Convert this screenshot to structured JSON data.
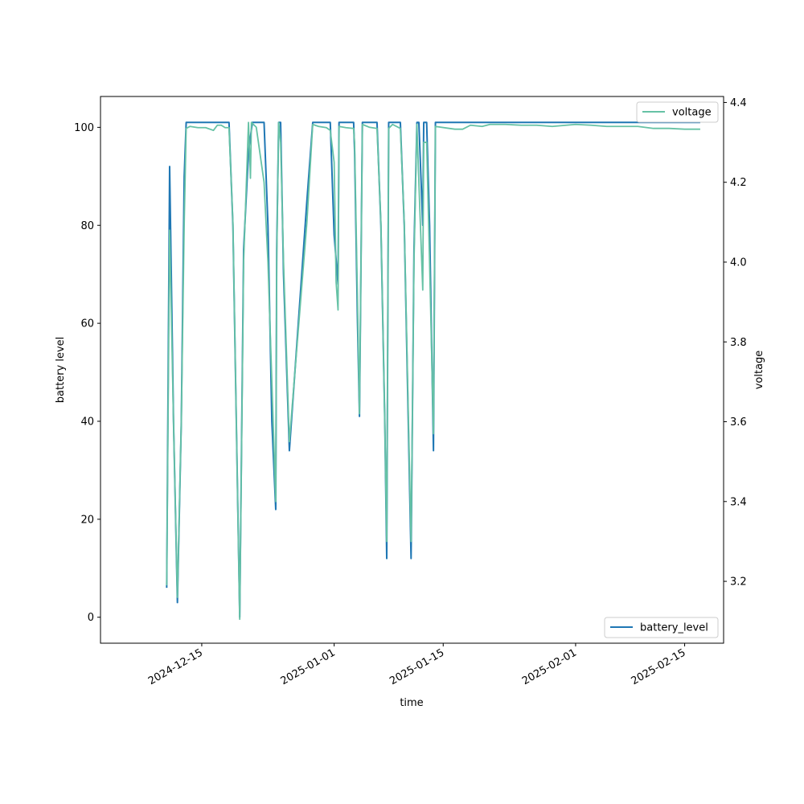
{
  "chart_data": {
    "type": "line",
    "xlabel": "time",
    "ylabel": "battery level",
    "y2label": "voltage",
    "xlim": [
      "2024-12-02",
      "2025-02-20"
    ],
    "ylim": [
      -5.3,
      106.3
    ],
    "y2lim": [
      3.045,
      4.415
    ],
    "x_ticks": [
      "2024-12-15",
      "2025-01-01",
      "2025-01-15",
      "2025-02-01",
      "2025-02-15"
    ],
    "y_ticks": [
      "0",
      "20",
      "40",
      "60",
      "80",
      "100"
    ],
    "y2_ticks": [
      "3.2",
      "3.4",
      "3.6",
      "3.8",
      "4.0",
      "4.2",
      "4.4"
    ],
    "colors": {
      "battery_level": "#1f77b4",
      "voltage": "#66c2a5"
    },
    "legend": {
      "battery_level": {
        "label": "battery_level",
        "placement": "lower right"
      },
      "voltage": {
        "label": "voltage",
        "placement": "upper right"
      }
    },
    "series": [
      {
        "name": "battery_level",
        "axis": "left",
        "points": [
          [
            "2024-12-10 12:00",
            6
          ],
          [
            "2024-12-10 21:00",
            92
          ],
          [
            "2024-12-11 09:00",
            40
          ],
          [
            "2024-12-11 21:00",
            3
          ],
          [
            "2024-12-12 09:00",
            40
          ],
          [
            "2024-12-12 18:00",
            90
          ],
          [
            "2024-12-13 00:00",
            101
          ],
          [
            "2024-12-15 00:00",
            101
          ],
          [
            "2024-12-18 00:00",
            101
          ],
          [
            "2024-12-18 12:00",
            101
          ],
          [
            "2024-12-19 00:00",
            80
          ],
          [
            "2024-12-19 21:00",
            0
          ],
          [
            "2024-12-20 09:00",
            75
          ],
          [
            "2024-12-21 00:00",
            95
          ],
          [
            "2024-12-21 12:00",
            101
          ],
          [
            "2024-12-23 00:00",
            101
          ],
          [
            "2024-12-23 12:00",
            80
          ],
          [
            "2024-12-24 00:00",
            40
          ],
          [
            "2024-12-24 12:00",
            22
          ],
          [
            "2024-12-24 15:00",
            75
          ],
          [
            "2024-12-24 21:00",
            101
          ],
          [
            "2024-12-25 03:00",
            101
          ],
          [
            "2024-12-25 12:00",
            70
          ],
          [
            "2024-12-26 06:00",
            34
          ],
          [
            "2024-12-28 12:00",
            85
          ],
          [
            "2024-12-29 06:00",
            101
          ],
          [
            "2024-12-31 00:00",
            101
          ],
          [
            "2024-12-31 12:00",
            101
          ],
          [
            "2025-01-01 00:00",
            78
          ],
          [
            "2025-01-01 12:00",
            68
          ],
          [
            "2025-01-01 15:00",
            101
          ],
          [
            "2025-01-03 12:00",
            101
          ],
          [
            "2025-01-03 15:00",
            95
          ],
          [
            "2025-01-04 00:00",
            60
          ],
          [
            "2025-01-04 06:00",
            41
          ],
          [
            "2025-01-04 15:00",
            101
          ],
          [
            "2025-01-06 12:00",
            101
          ],
          [
            "2025-01-07 00:00",
            80
          ],
          [
            "2025-01-07 12:00",
            40
          ],
          [
            "2025-01-07 18:00",
            12
          ],
          [
            "2025-01-08 00:00",
            101
          ],
          [
            "2025-01-09 12:00",
            101
          ],
          [
            "2025-01-10 00:00",
            80
          ],
          [
            "2025-01-10 21:00",
            12
          ],
          [
            "2025-01-11 06:00",
            75
          ],
          [
            "2025-01-11 15:00",
            101
          ],
          [
            "2025-01-11 21:00",
            101
          ],
          [
            "2025-01-12 09:00",
            80
          ],
          [
            "2025-01-12 12:00",
            101
          ],
          [
            "2025-01-12 21:00",
            101
          ],
          [
            "2025-01-13 06:00",
            80
          ],
          [
            "2025-01-13 18:00",
            34
          ],
          [
            "2025-01-14 00:00",
            101
          ],
          [
            "2025-01-20 00:00",
            101
          ],
          [
            "2025-02-01 00:00",
            101
          ],
          [
            "2025-02-10 00:00",
            101
          ],
          [
            "2025-02-17 00:00",
            101
          ]
        ]
      },
      {
        "name": "voltage",
        "axis": "right",
        "points": [
          [
            "2024-12-10 12:00",
            3.19
          ],
          [
            "2024-12-10 21:00",
            4.08
          ],
          [
            "2024-12-11 09:00",
            3.6
          ],
          [
            "2024-12-11 21:00",
            3.16
          ],
          [
            "2024-12-12 09:00",
            3.6
          ],
          [
            "2024-12-12 18:00",
            4.1
          ],
          [
            "2024-12-13 00:00",
            4.335
          ],
          [
            "2024-12-13 12:00",
            4.34
          ],
          [
            "2024-12-14 12:00",
            4.337
          ],
          [
            "2024-12-15 12:00",
            4.337
          ],
          [
            "2024-12-16 12:00",
            4.33
          ],
          [
            "2024-12-17 00:00",
            4.343
          ],
          [
            "2024-12-17 12:00",
            4.343
          ],
          [
            "2024-12-18 00:00",
            4.337
          ],
          [
            "2024-12-18 12:00",
            4.337
          ],
          [
            "2024-12-19 00:00",
            4.1
          ],
          [
            "2024-12-19 21:00",
            3.105
          ],
          [
            "2024-12-20 09:00",
            4.0
          ],
          [
            "2024-12-21 00:00",
            4.35
          ],
          [
            "2024-12-21 06:00",
            4.21
          ],
          [
            "2024-12-21 09:00",
            4.35
          ],
          [
            "2024-12-22 00:00",
            4.338
          ],
          [
            "2024-12-23 00:00",
            4.2
          ],
          [
            "2024-12-23 12:00",
            4.0
          ],
          [
            "2024-12-24 12:00",
            3.4
          ],
          [
            "2024-12-24 15:00",
            4.0
          ],
          [
            "2024-12-24 21:00",
            4.35
          ],
          [
            "2024-12-25 03:00",
            4.3
          ],
          [
            "2024-12-25 12:00",
            4.0
          ],
          [
            "2024-12-26 06:00",
            3.55
          ],
          [
            "2024-12-28 12:00",
            4.1
          ],
          [
            "2024-12-29 06:00",
            4.345
          ],
          [
            "2024-12-30 00:00",
            4.34
          ],
          [
            "2024-12-31 00:00",
            4.337
          ],
          [
            "2024-12-31 12:00",
            4.33
          ],
          [
            "2025-01-01 00:00",
            4.25
          ],
          [
            "2025-01-01 06:00",
            3.95
          ],
          [
            "2025-01-01 12:00",
            3.88
          ],
          [
            "2025-01-01 15:00",
            4.34
          ],
          [
            "2025-01-02 12:00",
            4.337
          ],
          [
            "2025-01-03 12:00",
            4.335
          ],
          [
            "2025-01-03 15:00",
            4.3
          ],
          [
            "2025-01-04 00:00",
            3.9
          ],
          [
            "2025-01-04 06:00",
            3.62
          ],
          [
            "2025-01-04 15:00",
            4.345
          ],
          [
            "2025-01-05 12:00",
            4.338
          ],
          [
            "2025-01-06 12:00",
            4.335
          ],
          [
            "2025-01-07 00:00",
            4.1
          ],
          [
            "2025-01-07 12:00",
            3.6
          ],
          [
            "2025-01-07 18:00",
            3.3
          ],
          [
            "2025-01-08 00:00",
            4.335
          ],
          [
            "2025-01-08 12:00",
            4.345
          ],
          [
            "2025-01-09 12:00",
            4.335
          ],
          [
            "2025-01-10 00:00",
            4.1
          ],
          [
            "2025-01-10 21:00",
            3.3
          ],
          [
            "2025-01-11 06:00",
            4.0
          ],
          [
            "2025-01-11 15:00",
            4.345
          ],
          [
            "2025-01-11 21:00",
            4.2
          ],
          [
            "2025-01-12 09:00",
            3.93
          ],
          [
            "2025-01-12 12:00",
            4.3
          ],
          [
            "2025-01-12 21:00",
            4.3
          ],
          [
            "2025-01-13 06:00",
            4.0
          ],
          [
            "2025-01-13 18:00",
            3.57
          ],
          [
            "2025-01-14 00:00",
            4.34
          ],
          [
            "2025-01-16 12:00",
            4.333
          ],
          [
            "2025-01-17 12:00",
            4.333
          ],
          [
            "2025-01-18 12:00",
            4.343
          ],
          [
            "2025-01-20 00:00",
            4.34
          ],
          [
            "2025-01-21 00:00",
            4.345
          ],
          [
            "2025-01-23 00:00",
            4.345
          ],
          [
            "2025-01-25 00:00",
            4.343
          ],
          [
            "2025-01-27 00:00",
            4.343
          ],
          [
            "2025-01-29 00:00",
            4.34
          ],
          [
            "2025-02-01 00:00",
            4.345
          ],
          [
            "2025-02-03 00:00",
            4.343
          ],
          [
            "2025-02-05 00:00",
            4.34
          ],
          [
            "2025-02-07 00:00",
            4.34
          ],
          [
            "2025-02-09 00:00",
            4.34
          ],
          [
            "2025-02-11 00:00",
            4.335
          ],
          [
            "2025-02-13 00:00",
            4.335
          ],
          [
            "2025-02-15 00:00",
            4.333
          ],
          [
            "2025-02-17 00:00",
            4.333
          ]
        ]
      }
    ]
  }
}
